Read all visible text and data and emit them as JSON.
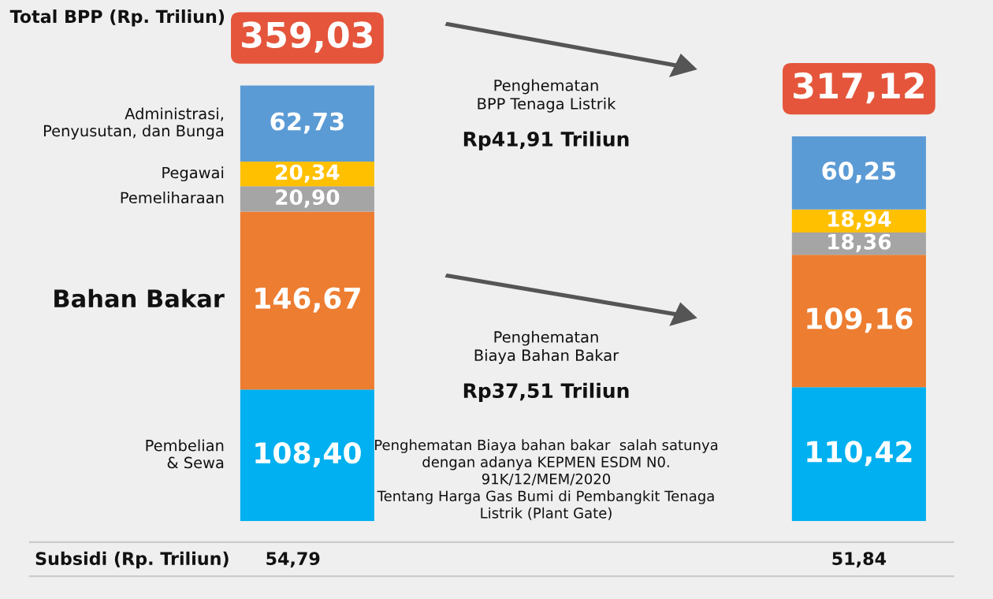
{
  "chart_data": {
    "type": "bar",
    "stacked": true,
    "categories": [
      null,
      null
    ],
    "series": [
      {
        "name": "Pembelian\n& Sewa",
        "color": "#00b0f0",
        "values": [
          108.4,
          110.42
        ],
        "value_labels": [
          "108,40",
          "110,42"
        ]
      },
      {
        "name": "Bahan Bakar",
        "color": "#ed7d31",
        "values": [
          146.67,
          109.16
        ],
        "value_labels": [
          "146,67",
          "109,16"
        ]
      },
      {
        "name": "Pemeliharaan",
        "color": "#a5a5a5",
        "values": [
          20.9,
          18.36
        ],
        "value_labels": [
          "20,90",
          "18,36"
        ]
      },
      {
        "name": "Pegawai",
        "color": "#ffc000",
        "values": [
          20.34,
          18.94
        ],
        "value_labels": [
          "20,34",
          "18,94"
        ]
      },
      {
        "name": "Administrasi,\nPenyusutan, dan Bunga",
        "color": "#5b9bd5",
        "values": [
          62.73,
          60.25
        ],
        "value_labels": [
          "62,73",
          "60,25"
        ]
      }
    ],
    "totals": [
      "359,03",
      "317,12"
    ],
    "annotations": [
      "Total BPP (Rp. Triliun)",
      "Penghematan\nBPP Tenaga Listrik",
      "Rp41,91 Triliun",
      "Penghematan\nBiaya Bahan Bakar",
      "Rp37,51 Triliun",
      "Penghematan Biaya bahan bakar  salah satunya\ndengan adanya KEPMEN ESDM N0.\n91K/12/MEM/2020\nTentang Harga Gas Bumi di Pembangkit Tenaga\nListrik (Plant Gate)",
      "Subsidi (Rp. Triliun)",
      "54,79",
      "51,84"
    ],
    "legend": false
  }
}
